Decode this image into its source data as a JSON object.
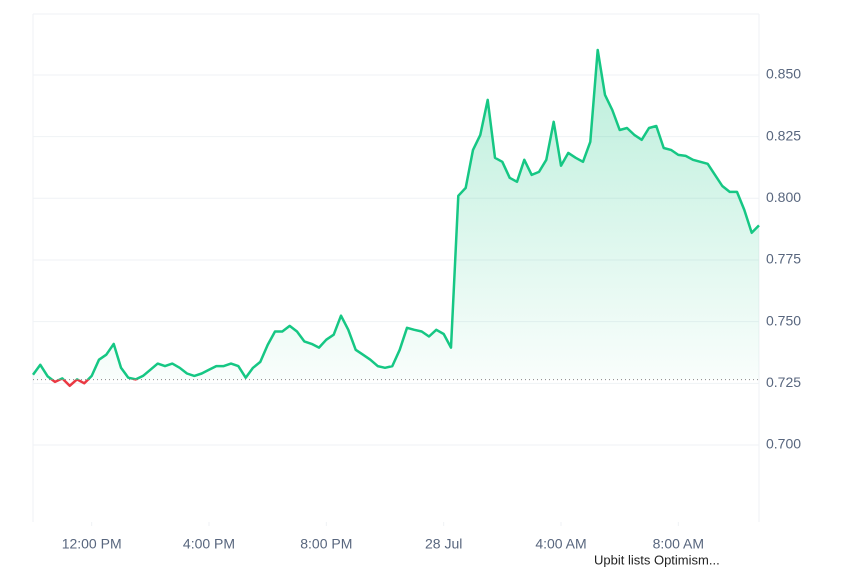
{
  "chart_data": {
    "type": "line",
    "xticks": [
      {
        "value": 8,
        "label": "12:00 PM"
      },
      {
        "value": 24,
        "label": "4:00 PM"
      },
      {
        "value": 40,
        "label": "8:00 PM"
      },
      {
        "value": 56,
        "label": "28 Jul"
      },
      {
        "value": 72,
        "label": "4:00 AM"
      },
      {
        "value": 88,
        "label": "8:00 AM"
      }
    ],
    "xlim": [
      0,
      99
    ],
    "ylim": [
      0.6688,
      0.8747
    ],
    "yticks": [
      {
        "value": 0.85,
        "label": "0.850"
      },
      {
        "value": 0.825,
        "label": "0.825"
      },
      {
        "value": 0.8,
        "label": "0.800"
      },
      {
        "value": 0.775,
        "label": "0.775"
      },
      {
        "value": 0.75,
        "label": "0.750"
      },
      {
        "value": 0.725,
        "label": "0.725"
      },
      {
        "value": 0.7,
        "label": "0.700"
      }
    ],
    "baseline": 0.7265,
    "up_color": "#16c784",
    "down_color": "#ea3943",
    "grid": true,
    "annotation": "Upbit lists Optimism...",
    "values": [
      0.7285,
      0.7325,
      0.7278,
      0.7256,
      0.727,
      0.724,
      0.7266,
      0.725,
      0.728,
      0.7346,
      0.7366,
      0.741,
      0.7313,
      0.7273,
      0.7266,
      0.728,
      0.7305,
      0.733,
      0.732,
      0.733,
      0.7313,
      0.729,
      0.728,
      0.729,
      0.7305,
      0.732,
      0.732,
      0.733,
      0.732,
      0.7273,
      0.7313,
      0.7337,
      0.7406,
      0.746,
      0.746,
      0.7483,
      0.746,
      0.742,
      0.741,
      0.7395,
      0.7427,
      0.7447,
      0.7524,
      0.7467,
      0.7386,
      0.7366,
      0.7346,
      0.732,
      0.7313,
      0.732,
      0.7386,
      0.7475,
      0.7467,
      0.746,
      0.744,
      0.7467,
      0.745,
      0.7395,
      0.801,
      0.8042,
      0.8196,
      0.8257,
      0.8399,
      0.8164,
      0.8148,
      0.8083,
      0.8067,
      0.8156,
      0.8095,
      0.8107,
      0.8156,
      0.831,
      0.8132,
      0.8184,
      0.8164,
      0.8148,
      0.8229,
      0.8601,
      0.8419,
      0.8358,
      0.8277,
      0.8285,
      0.8257,
      0.8237,
      0.8285,
      0.8293,
      0.8204,
      0.8196,
      0.8176,
      0.8172,
      0.8156,
      0.8148,
      0.814,
      0.8095,
      0.805,
      0.8026,
      0.8026,
      0.7953,
      0.786,
      0.789
    ]
  }
}
